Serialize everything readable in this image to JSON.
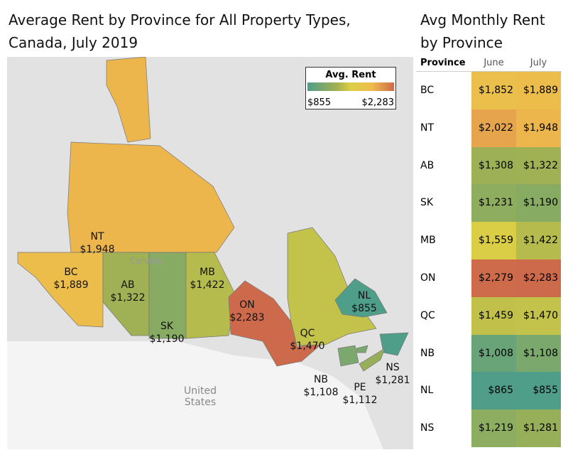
{
  "titles": {
    "map": "Average Rent by Province for All Property Types, Canada, July 2019",
    "table": "Avg Monthly Rent by Province"
  },
  "legend": {
    "title": "Avg. Rent",
    "min_label": "$855",
    "max_label": "$2,283",
    "min": 855,
    "max": 2283
  },
  "map_labels": {
    "canada": "Canada",
    "us": "United States"
  },
  "chart_data": {
    "type": "table",
    "title": "Avg Monthly Rent by Province",
    "columns": [
      "Province",
      "June",
      "July"
    ],
    "rows": [
      {
        "province": "BC",
        "june": 1852,
        "july": 1889,
        "june_label": "$1,852",
        "july_label": "$1,889"
      },
      {
        "province": "NT",
        "june": 2022,
        "july": 1948,
        "june_label": "$2,022",
        "july_label": "$1,948"
      },
      {
        "province": "AB",
        "june": 1308,
        "july": 1322,
        "june_label": "$1,308",
        "july_label": "$1,322"
      },
      {
        "province": "SK",
        "june": 1231,
        "july": 1190,
        "june_label": "$1,231",
        "july_label": "$1,190"
      },
      {
        "province": "MB",
        "june": 1559,
        "july": 1422,
        "june_label": "$1,559",
        "july_label": "$1,422"
      },
      {
        "province": "ON",
        "june": 2279,
        "july": 2283,
        "june_label": "$2,279",
        "july_label": "$2,283"
      },
      {
        "province": "QC",
        "june": 1459,
        "july": 1470,
        "june_label": "$1,459",
        "july_label": "$1,470"
      },
      {
        "province": "NB",
        "june": 1008,
        "july": 1108,
        "june_label": "$1,008",
        "july_label": "$1,108"
      },
      {
        "province": "NL",
        "june": 865,
        "july": 855,
        "june_label": "$865",
        "july_label": "$855"
      },
      {
        "province": "NS",
        "june": 1219,
        "july": 1281,
        "june_label": "$1,219",
        "july_label": "$1,281"
      }
    ],
    "map_extra": [
      {
        "province": "PE",
        "july": 1112,
        "july_label": "$1,112"
      }
    ]
  }
}
